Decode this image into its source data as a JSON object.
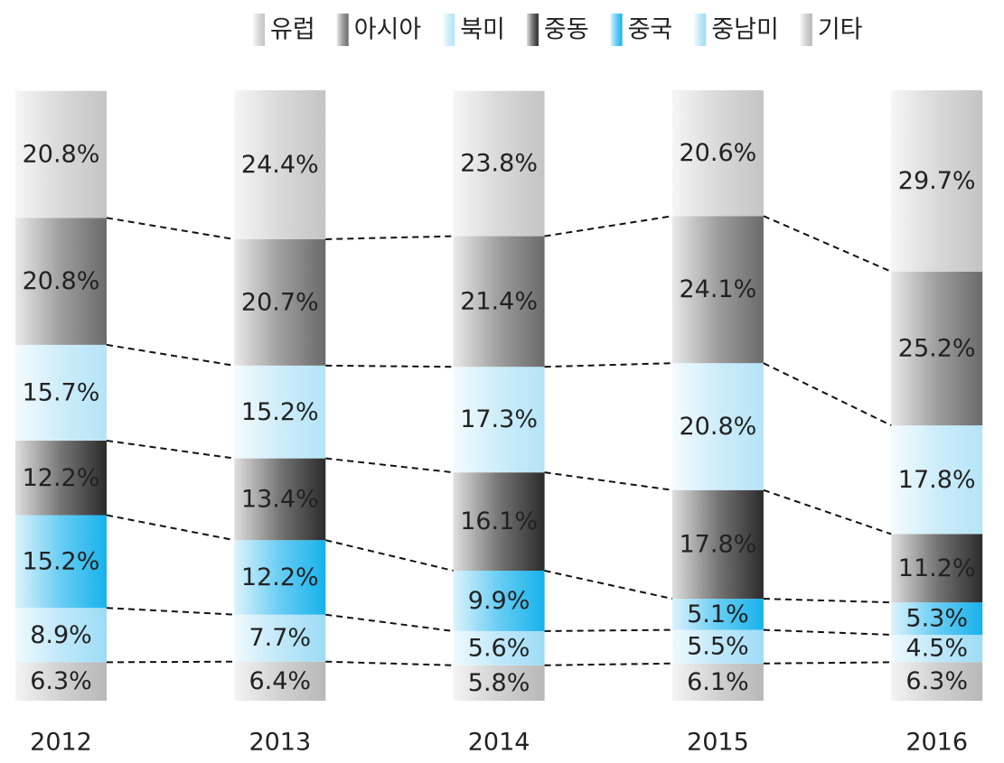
{
  "chart_data": {
    "type": "bar",
    "stacked": true,
    "categories": [
      "2012",
      "2013",
      "2014",
      "2015",
      "2016"
    ],
    "ylim": [
      0,
      100
    ],
    "series": [
      {
        "name": "유럽",
        "color": "#c4c4c4",
        "values": [
          20.8,
          24.4,
          23.8,
          20.6,
          29.7
        ],
        "value_labels": [
          "20.8%",
          "24.4%",
          "23.8%",
          "20.6%",
          "29.7%"
        ]
      },
      {
        "name": "아시아",
        "color": "#6a6a6a",
        "values": [
          20.8,
          20.7,
          21.4,
          24.1,
          25.2
        ],
        "value_labels": [
          "20.8%",
          "20.7%",
          "21.4%",
          "24.1%",
          "25.2%"
        ]
      },
      {
        "name": "북미",
        "color": "#b4e4f8",
        "values": [
          15.7,
          15.2,
          17.3,
          20.8,
          17.8
        ],
        "value_labels": [
          "15.7%",
          "15.2%",
          "17.3%",
          "20.8%",
          "17.8%"
        ]
      },
      {
        "name": "중동",
        "color": "#2b2b2b",
        "values": [
          12.2,
          13.4,
          16.1,
          17.8,
          11.2
        ],
        "value_labels": [
          "12.2%",
          "13.4%",
          "16.1%",
          "17.8%",
          "11.2%"
        ]
      },
      {
        "name": "중국",
        "color": "#16b2ec",
        "values": [
          15.2,
          12.2,
          9.9,
          5.1,
          5.3
        ],
        "value_labels": [
          "15.2%",
          "12.2%",
          "9.9%",
          "5.1%",
          "5.3%"
        ]
      },
      {
        "name": "중남미",
        "color": "#9edcf6",
        "values": [
          8.9,
          7.7,
          5.6,
          5.5,
          4.5
        ],
        "value_labels": [
          "8.9%",
          "7.7%",
          "5.6%",
          "5.5%",
          "4.5%"
        ]
      },
      {
        "name": "기타",
        "color": "#b8b8b8",
        "values": [
          6.3,
          6.4,
          5.8,
          6.1,
          6.3
        ],
        "value_labels": [
          "6.3%",
          "6.4%",
          "5.8%",
          "6.1%",
          "6.3%"
        ]
      }
    ]
  }
}
